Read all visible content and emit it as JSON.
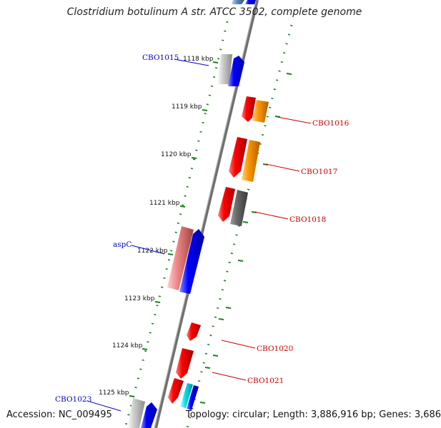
{
  "title": "Clostridium botulinum A str. ATCC 3502, complete genome",
  "footer": {
    "accession": "Accession: NC_009495",
    "summary": "Topology: circular; Length: 3,886,916 bp; Genes: 3,686"
  },
  "colors": {
    "backbone": "#808080",
    "tick": "#208020",
    "forward_label": "#0000cc",
    "reverse_label": "#cc0000",
    "forward_cds": "#0000ff",
    "reverse_cds": "#ff0000"
  },
  "kbp_markers": [
    "1118 kbp",
    "1119 kbp",
    "1120 kbp",
    "1121 kbp",
    "1122 kbp",
    "1123 kbp",
    "1124 kbp",
    "1125 kbp"
  ],
  "gene_labels": [
    {
      "name": "CBO1015",
      "strand": "forward"
    },
    {
      "name": "CBO1016",
      "strand": "reverse"
    },
    {
      "name": "CBO1017",
      "strand": "reverse"
    },
    {
      "name": "CBO1018",
      "strand": "reverse"
    },
    {
      "name": "aspC",
      "strand": "forward"
    },
    {
      "name": "CBO1020",
      "strand": "reverse"
    },
    {
      "name": "CBO1021",
      "strand": "reverse"
    },
    {
      "name": "CBO1023",
      "strand": "forward"
    }
  ]
}
